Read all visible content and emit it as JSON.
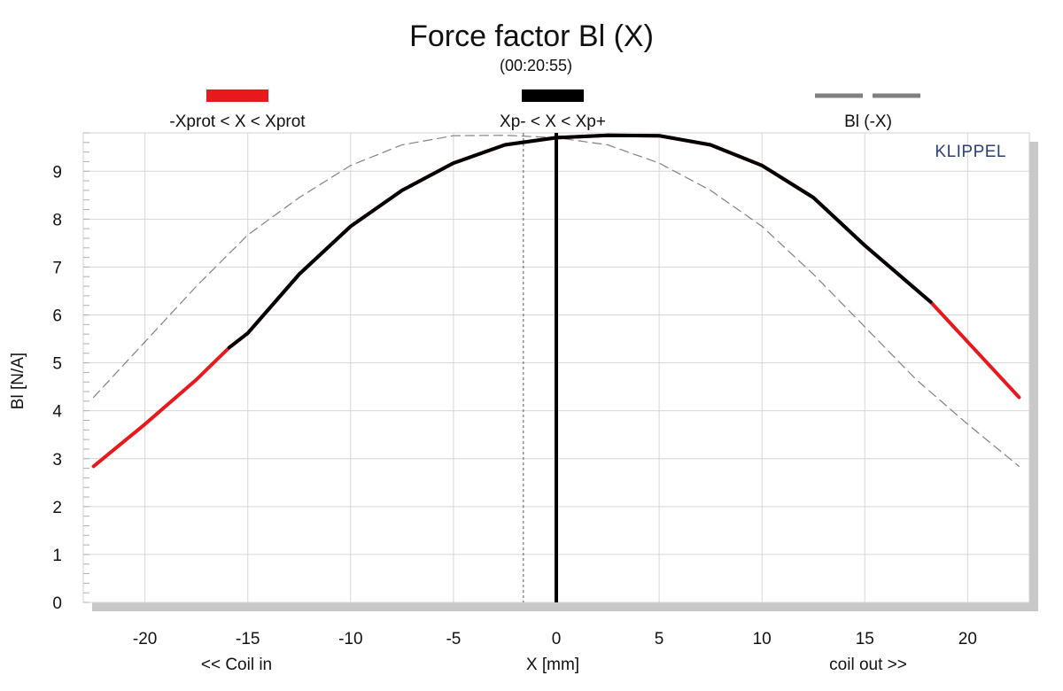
{
  "chart_data": {
    "type": "line",
    "title": "Force factor Bl (X)",
    "subtitle": "(00:20:55)",
    "brand": "KLIPPEL",
    "xlabel": "X [mm]",
    "xlabel_left": "<< Coil in",
    "xlabel_right": "coil out >>",
    "ylabel": "Bl [N/A]",
    "xlim": [
      -23,
      23
    ],
    "ylim": [
      0,
      9.8
    ],
    "x_ticks": [
      -20,
      -15,
      -10,
      -5,
      0,
      5,
      10,
      15,
      20
    ],
    "y_ticks": [
      0,
      1,
      2,
      3,
      4,
      5,
      6,
      7,
      8,
      9
    ],
    "grid": true,
    "legend_placement": "top",
    "legend": [
      {
        "label": "-Xprot < X < Xprot",
        "color": "#e8191d",
        "style": "solid"
      },
      {
        "label": "Xp- < X < Xp+",
        "color": "#000000",
        "style": "solid"
      },
      {
        "label": "Bl (-X)",
        "color": "#808080",
        "style": "dashed"
      }
    ],
    "series": [
      {
        "name": "-Xprot < X < Xprot",
        "color": "#e8191d",
        "x": [
          -22.5,
          -20,
          -17.5,
          -15.9,
          -15,
          -12.5,
          -10,
          -7.5,
          -5,
          -2.5,
          0,
          2.5,
          5,
          7.5,
          10,
          12.5,
          15,
          18.2,
          20,
          22.5
        ],
        "y": [
          2.84,
          3.72,
          4.65,
          5.32,
          5.62,
          6.85,
          7.85,
          8.6,
          9.17,
          9.55,
          9.7,
          9.75,
          9.74,
          9.55,
          9.12,
          8.45,
          7.45,
          6.27,
          5.44,
          4.28
        ]
      },
      {
        "name": "Xp- < X < Xp+",
        "color": "#000000",
        "x": [
          -15.9,
          -15,
          -12.5,
          -10,
          -7.5,
          -5,
          -2.5,
          0,
          2.5,
          5,
          7.5,
          10,
          12.5,
          15,
          18.2
        ],
        "y": [
          5.32,
          5.62,
          6.85,
          7.85,
          8.6,
          9.17,
          9.55,
          9.7,
          9.75,
          9.74,
          9.55,
          9.12,
          8.45,
          7.45,
          6.27
        ]
      },
      {
        "name": "Bl (-X)",
        "color": "#808080",
        "x": [
          -22.5,
          -20,
          -17.5,
          -15,
          -12.5,
          -10,
          -7.5,
          -5,
          -2.5,
          0,
          2.5,
          5,
          7.5,
          10,
          12.5,
          15,
          17.5,
          20,
          22.5
        ],
        "y": [
          4.28,
          5.44,
          6.6,
          7.67,
          8.45,
          9.12,
          9.55,
          9.74,
          9.75,
          9.7,
          9.55,
          9.17,
          8.6,
          7.85,
          6.85,
          5.75,
          4.65,
          3.72,
          2.84
        ]
      }
    ],
    "markers": [
      {
        "x": 0,
        "style": "solid",
        "color": "#000000"
      },
      {
        "x": -1.6,
        "style": "dotted",
        "color": "#555555"
      }
    ]
  }
}
